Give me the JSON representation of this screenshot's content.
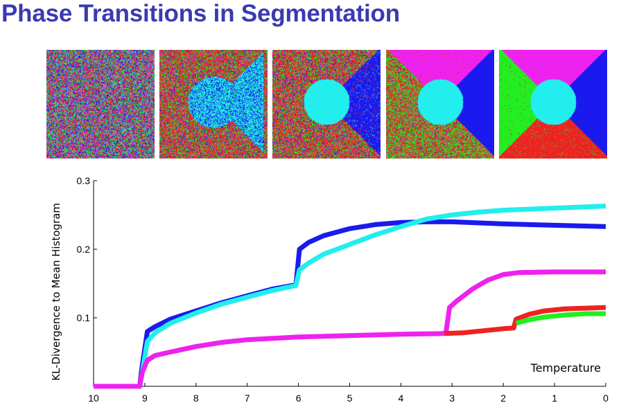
{
  "slide": {
    "title": "Phase Transitions in Segmentation"
  },
  "segmentation_panels": [
    {
      "stage": 1,
      "regions": [],
      "colors_present": [
        "red",
        "green",
        "blue",
        "magenta",
        "cyan"
      ]
    },
    {
      "stage": 2,
      "regions": [
        "cyan-circle+right-wedge"
      ],
      "colors_present": [
        "red",
        "green",
        "blue",
        "cyan"
      ]
    },
    {
      "stage": 3,
      "regions": [
        "cyan-circle",
        "blue-right-wedge"
      ],
      "colors_present": [
        "red",
        "green",
        "blue",
        "cyan"
      ]
    },
    {
      "stage": 4,
      "regions": [
        "cyan-circle",
        "blue-right-wedge",
        "magenta-top-wedge"
      ],
      "colors_present": [
        "red",
        "green",
        "blue",
        "cyan",
        "magenta"
      ]
    },
    {
      "stage": 5,
      "regions": [
        "cyan-circle",
        "blue-right-wedge",
        "magenta-top-wedge",
        "green-left-wedge",
        "red-bottom-wedge"
      ],
      "colors_present": [
        "red",
        "green",
        "blue",
        "cyan",
        "magenta"
      ]
    }
  ],
  "colors": {
    "title": "#3a3ab0",
    "red": "#ee2222",
    "green": "#22ee22",
    "blue": "#1a1aee",
    "cyan": "#22eeee",
    "magenta": "#ee22ee"
  },
  "chart_data": {
    "type": "line",
    "title": "",
    "xlabel": "Temperature",
    "ylabel": "KL-Divergence to Mean Histogram",
    "xlim": [
      10,
      0
    ],
    "ylim": [
      0,
      0.3
    ],
    "x_reversed": true,
    "xticks": [
      "10",
      "9",
      "8",
      "7",
      "6",
      "5",
      "4",
      "3",
      "2",
      "1",
      "0"
    ],
    "xtick_values": [
      10,
      9,
      8,
      7,
      6,
      5,
      4,
      3,
      2,
      1,
      0
    ],
    "yticks": [
      "0.1",
      "0.2",
      "0.3"
    ],
    "ytick_values": [
      0.1,
      0.2,
      0.3
    ],
    "grid": false,
    "series": [
      {
        "color": "#1a1aee",
        "points": [
          [
            10,
            0
          ],
          [
            9.1,
            0
          ],
          [
            9.05,
            0.03
          ],
          [
            8.95,
            0.08
          ],
          [
            8.8,
            0.087
          ],
          [
            8.5,
            0.098
          ],
          [
            8,
            0.11
          ],
          [
            7.5,
            0.122
          ],
          [
            7,
            0.132
          ],
          [
            6.5,
            0.142
          ],
          [
            6.05,
            0.148
          ],
          [
            5.98,
            0.2
          ],
          [
            5.8,
            0.21
          ],
          [
            5.5,
            0.22
          ],
          [
            5,
            0.23
          ],
          [
            4.5,
            0.236
          ],
          [
            4,
            0.239
          ],
          [
            3.5,
            0.24
          ],
          [
            3,
            0.24
          ],
          [
            2,
            0.237
          ],
          [
            1,
            0.235
          ],
          [
            0,
            0.233
          ]
        ]
      },
      {
        "color": "#22eeee",
        "points": [
          [
            10,
            0
          ],
          [
            9.1,
            0
          ],
          [
            9.05,
            0.02
          ],
          [
            8.95,
            0.065
          ],
          [
            8.8,
            0.078
          ],
          [
            8.5,
            0.092
          ],
          [
            8,
            0.107
          ],
          [
            7.5,
            0.12
          ],
          [
            7,
            0.13
          ],
          [
            6.5,
            0.14
          ],
          [
            6.05,
            0.147
          ],
          [
            5.98,
            0.17
          ],
          [
            5.8,
            0.18
          ],
          [
            5.5,
            0.193
          ],
          [
            5,
            0.207
          ],
          [
            4.5,
            0.221
          ],
          [
            4,
            0.233
          ],
          [
            3.5,
            0.244
          ],
          [
            3,
            0.25
          ],
          [
            2.5,
            0.254
          ],
          [
            2,
            0.257
          ],
          [
            1,
            0.26
          ],
          [
            0,
            0.263
          ]
        ]
      },
      {
        "color": "#ee22ee",
        "points": [
          [
            10,
            0
          ],
          [
            9.1,
            0
          ],
          [
            9.05,
            0.02
          ],
          [
            8.95,
            0.038
          ],
          [
            8.8,
            0.045
          ],
          [
            8.5,
            0.05
          ],
          [
            8,
            0.058
          ],
          [
            7.5,
            0.064
          ],
          [
            7,
            0.068
          ],
          [
            6.5,
            0.07
          ],
          [
            6,
            0.072
          ],
          [
            5,
            0.074
          ],
          [
            4,
            0.076
          ],
          [
            3.2,
            0.077
          ],
          [
            3.12,
            0.078
          ],
          [
            3.05,
            0.115
          ],
          [
            2.9,
            0.125
          ],
          [
            2.6,
            0.142
          ],
          [
            2.3,
            0.155
          ],
          [
            2,
            0.163
          ],
          [
            1.7,
            0.166
          ],
          [
            1,
            0.167
          ],
          [
            0,
            0.167
          ]
        ]
      },
      {
        "color": "#ee2222",
        "points": [
          [
            3.15,
            0.077
          ],
          [
            2.8,
            0.078
          ],
          [
            2.4,
            0.081
          ],
          [
            2,
            0.084
          ],
          [
            1.8,
            0.085
          ],
          [
            1.75,
            0.098
          ],
          [
            1.5,
            0.105
          ],
          [
            1.2,
            0.11
          ],
          [
            0.8,
            0.113
          ],
          [
            0.4,
            0.114
          ],
          [
            0,
            0.115
          ]
        ]
      },
      {
        "color": "#22ee22",
        "points": [
          [
            1.75,
            0.092
          ],
          [
            1.5,
            0.097
          ],
          [
            1.2,
            0.101
          ],
          [
            0.8,
            0.104
          ],
          [
            0.4,
            0.106
          ],
          [
            0,
            0.106
          ]
        ]
      }
    ]
  }
}
